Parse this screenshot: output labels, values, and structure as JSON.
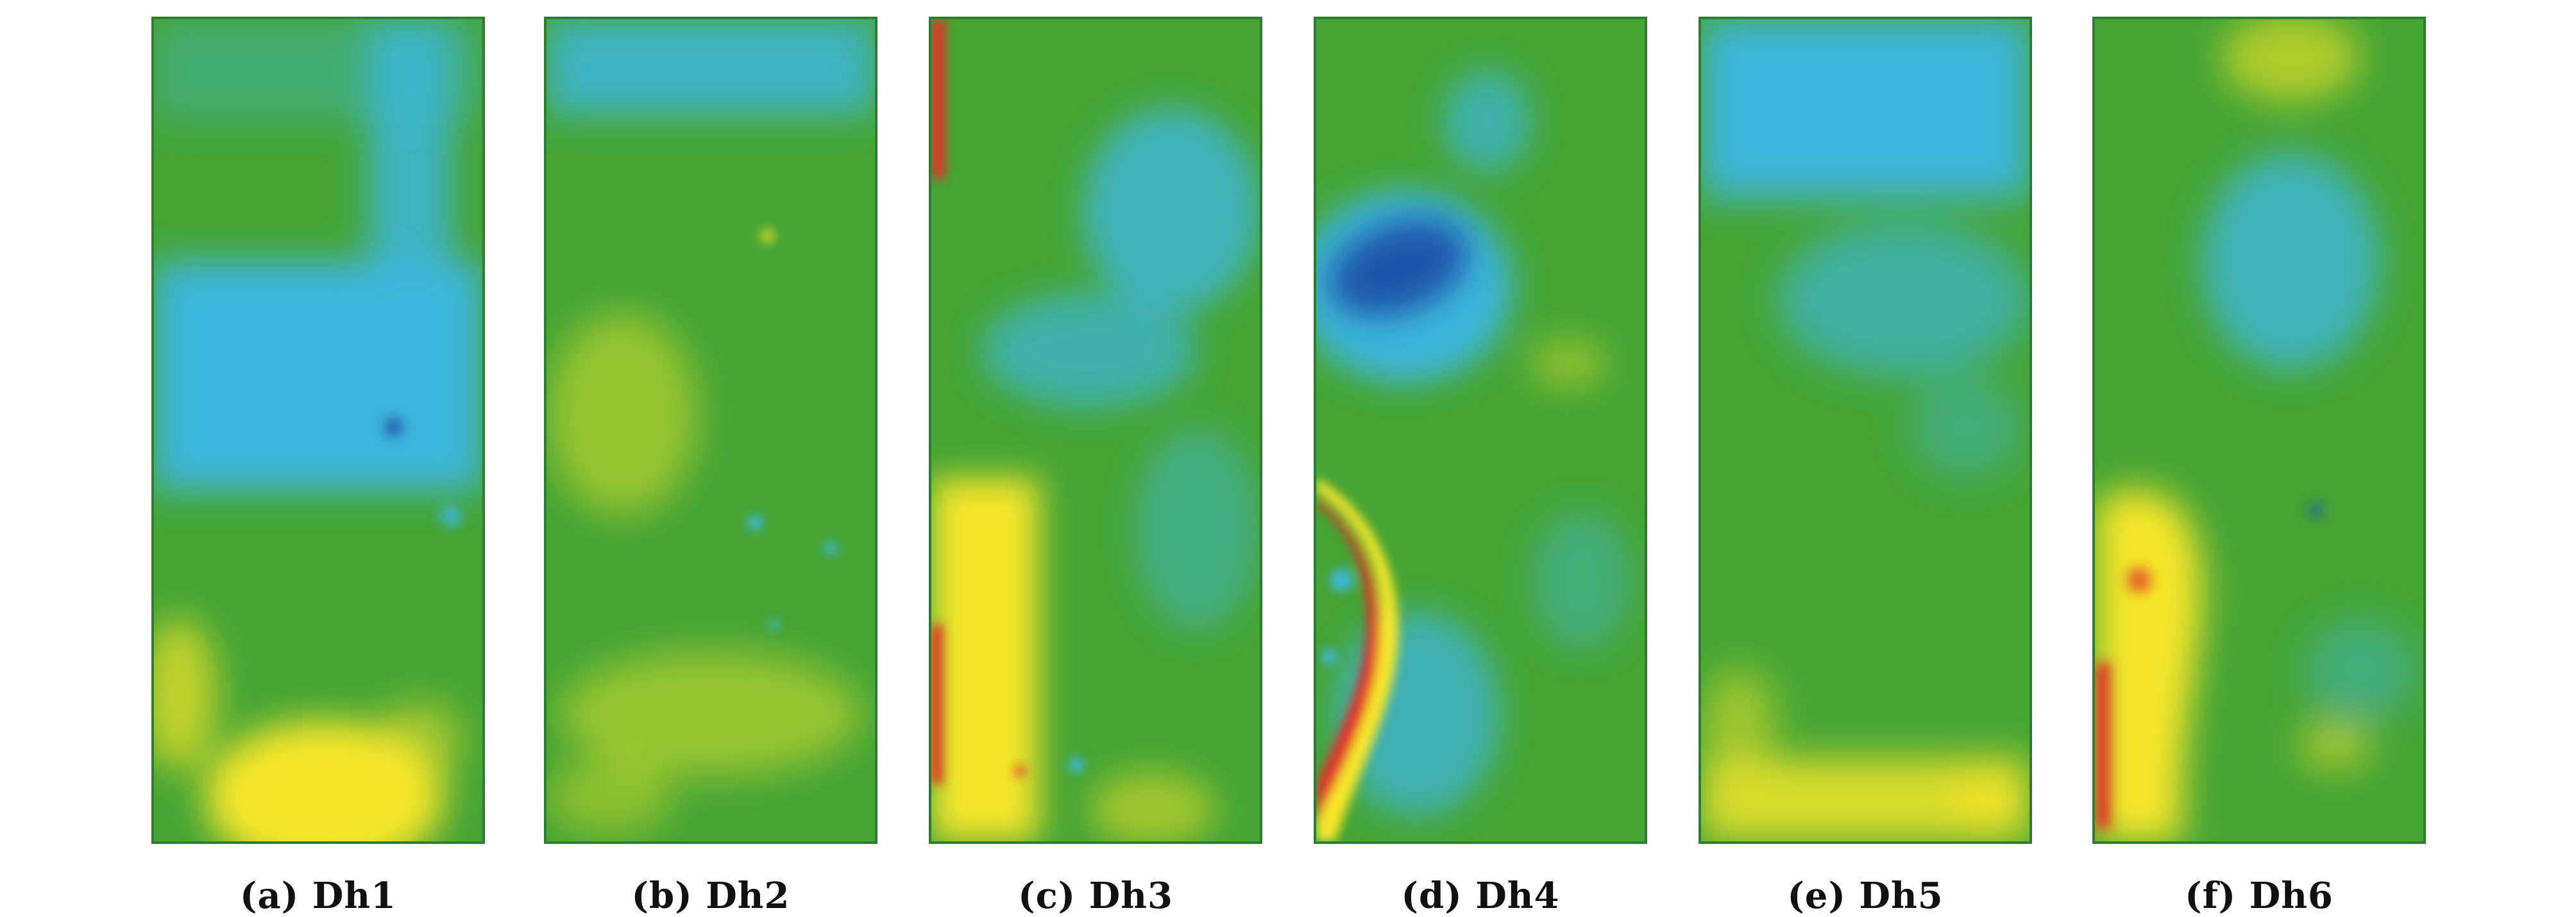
{
  "colors": {
    "green": "#46a535",
    "cyan": "#3db6dc",
    "blue": "#1f55a8",
    "yellow": "#f5e62a",
    "red": "#e0312a"
  },
  "panels": [
    {
      "caption": "(a) Dh1"
    },
    {
      "caption": "(b) Dh2"
    },
    {
      "caption": "(c) Dh3"
    },
    {
      "caption": "(d) Dh4"
    },
    {
      "caption": "(e) Dh5"
    },
    {
      "caption": "(f) Dh6"
    }
  ]
}
